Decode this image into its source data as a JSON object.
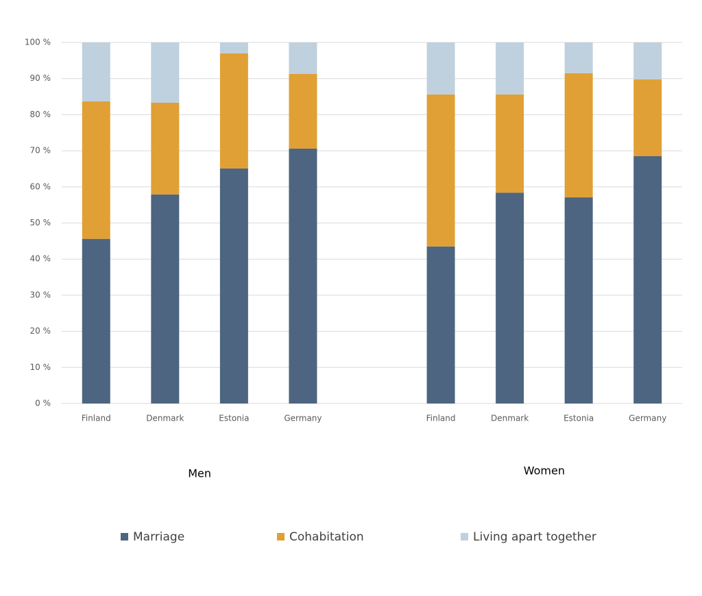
{
  "chart_data": {
    "type": "stacked_bar",
    "categories": [
      "Finland",
      "Denmark",
      "Estonia",
      "Germany",
      null,
      "Finland",
      "Denmark",
      "Estonia",
      "Germany"
    ],
    "group_labels": [
      "Men",
      "Women"
    ],
    "series": [
      {
        "name": "Marriage",
        "color": "#4d6580",
        "values": [
          45.6,
          57.9,
          65.1,
          70.6,
          null,
          43.5,
          58.4,
          57.1,
          68.5
        ]
      },
      {
        "name": "Cohabitation",
        "color": "#e0a035",
        "values": [
          38.1,
          25.4,
          31.9,
          20.7,
          null,
          42.1,
          27.2,
          34.4,
          21.3
        ]
      },
      {
        "name": "Living apart together",
        "color": "#bfd0de",
        "values": [
          16.3,
          16.7,
          3.0,
          8.7,
          null,
          14.4,
          14.4,
          8.5,
          10.2
        ]
      }
    ],
    "ylim": [
      0,
      100
    ],
    "yticks": [
      {
        "value": 0,
        "label": "0 %"
      },
      {
        "value": 10,
        "label": "10 %"
      },
      {
        "value": 20,
        "label": "20 %"
      },
      {
        "value": 30,
        "label": "30 %"
      },
      {
        "value": 40,
        "label": "40 %"
      },
      {
        "value": 50,
        "label": "50 %"
      },
      {
        "value": 60,
        "label": "60 %"
      },
      {
        "value": 70,
        "label": "70 %"
      },
      {
        "value": 80,
        "label": "80 %"
      },
      {
        "value": 90,
        "label": "90 %"
      },
      {
        "value": 100,
        "label": "100 %"
      }
    ],
    "grid": true,
    "legend": "bottom"
  }
}
